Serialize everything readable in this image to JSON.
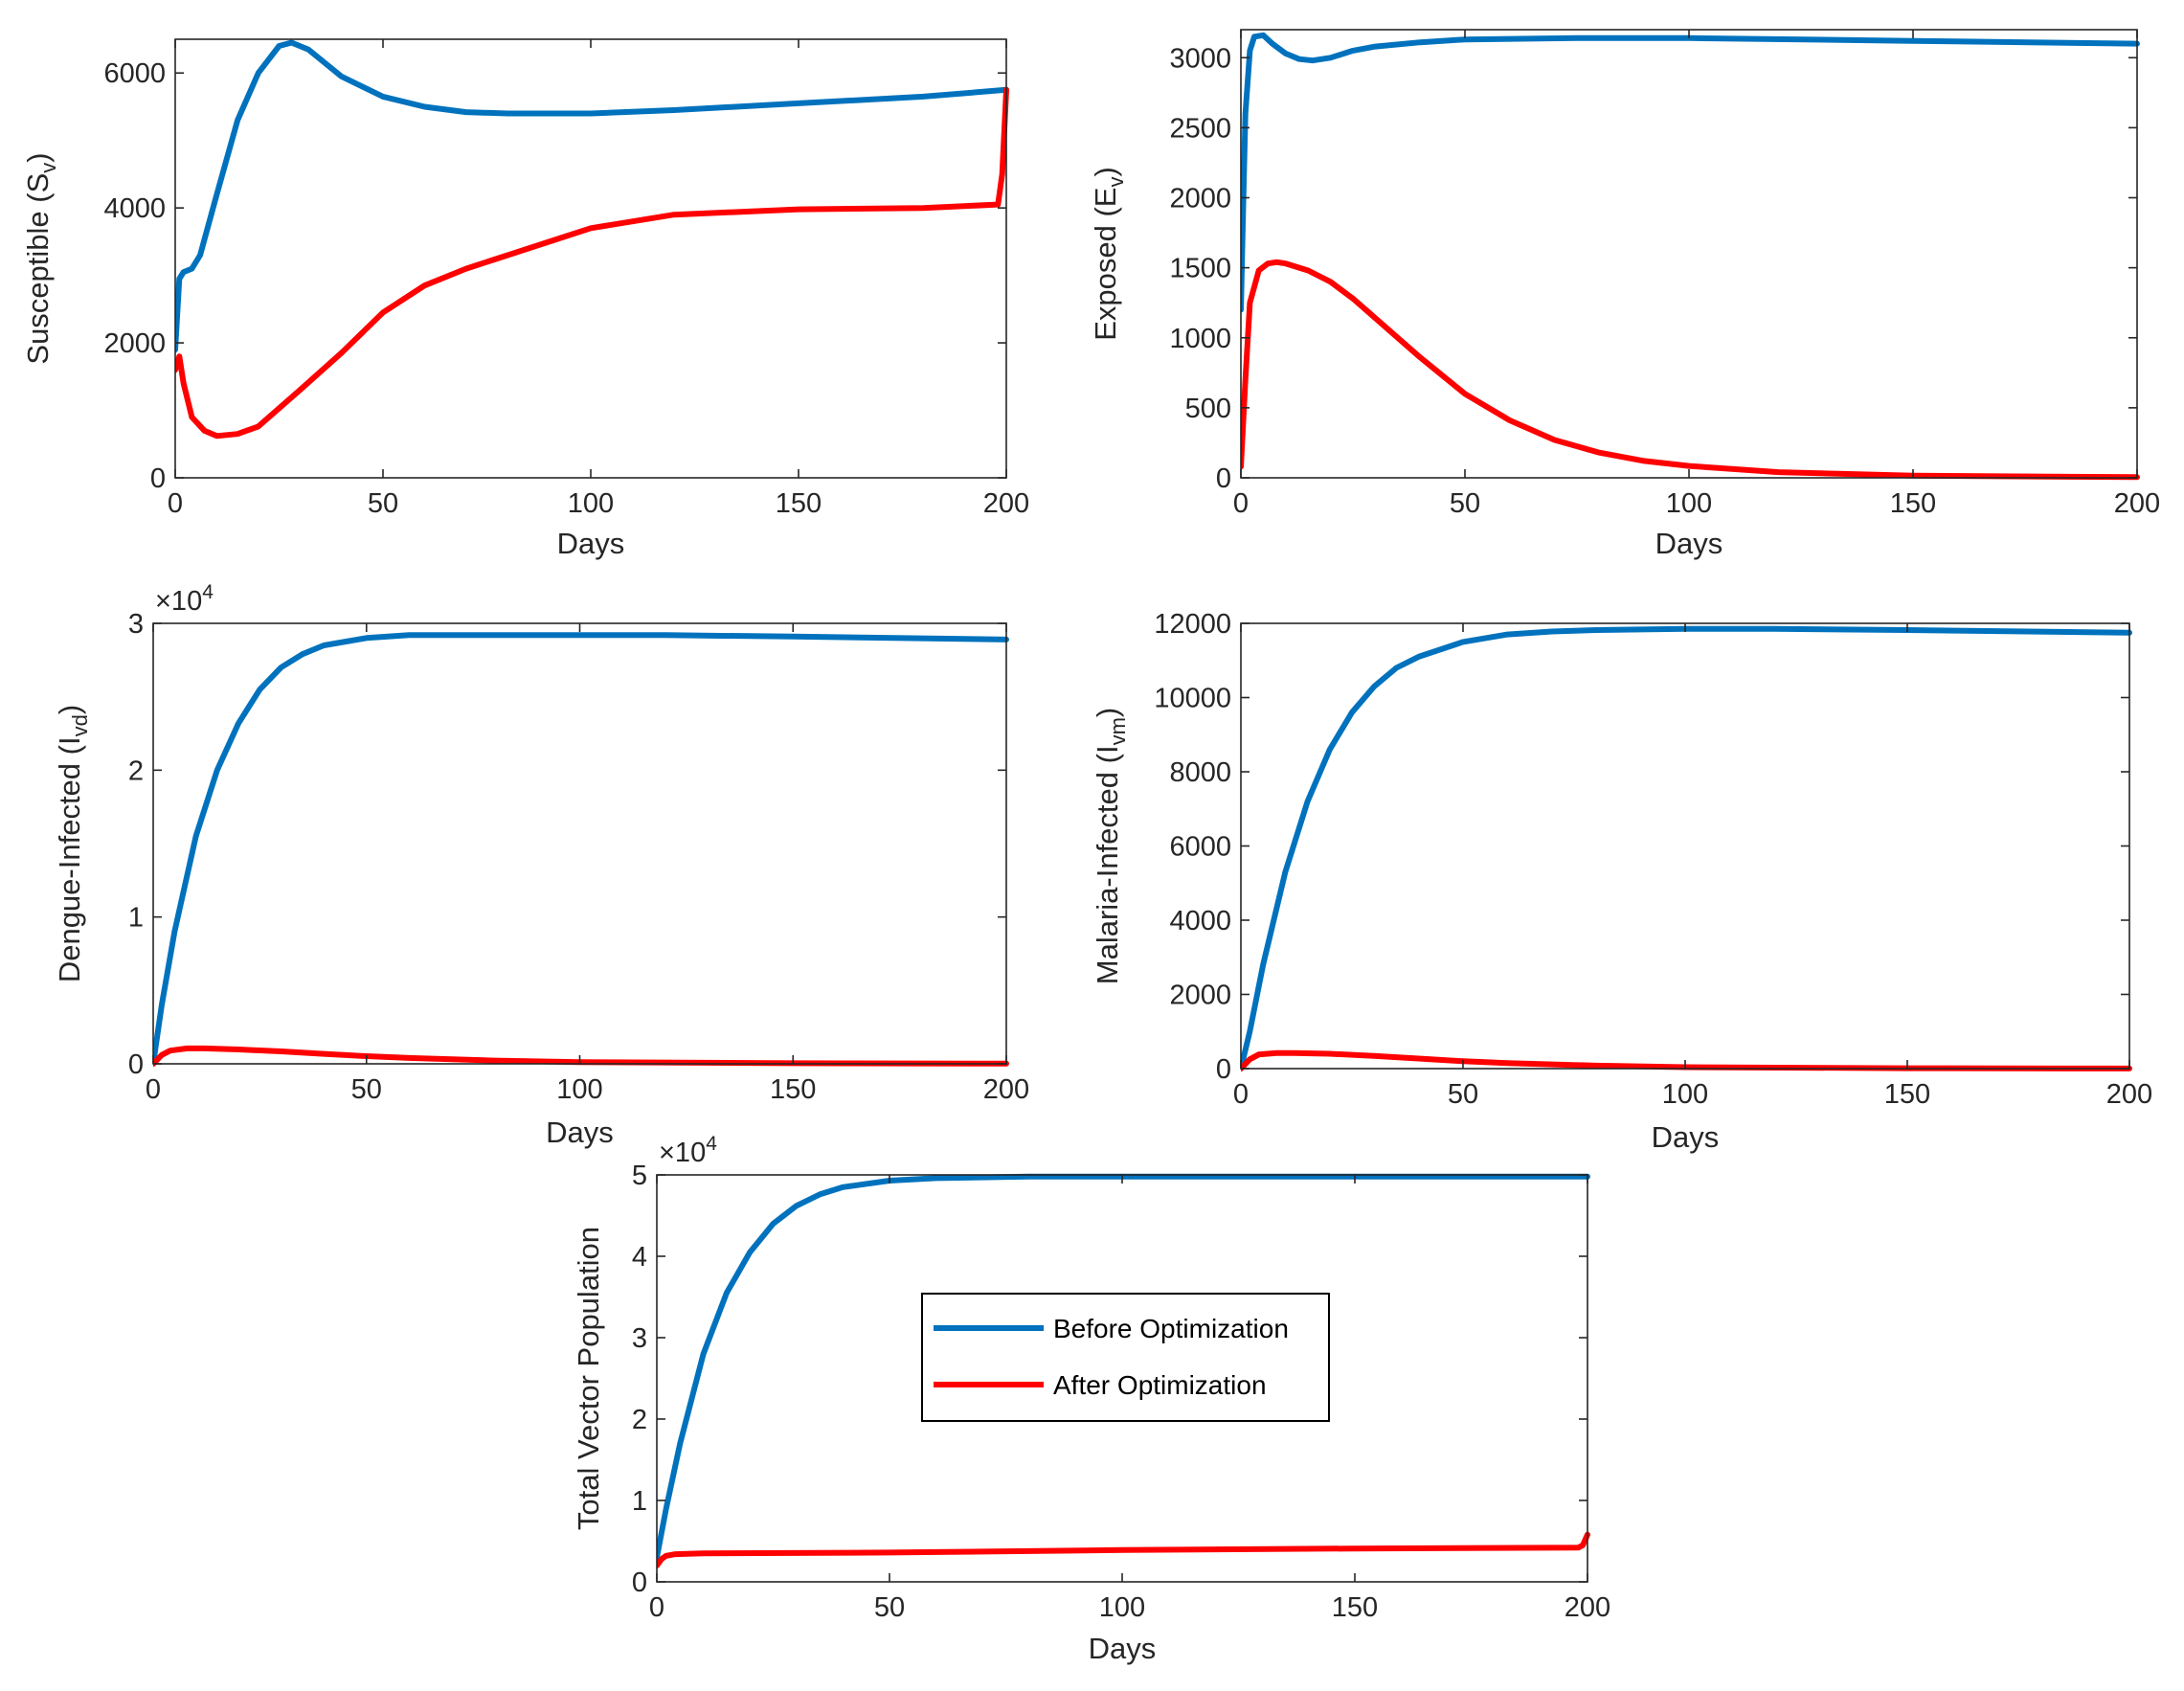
{
  "colors": {
    "before": "#0072BD",
    "after": "#FF0000",
    "axis": "#262626"
  },
  "legend": {
    "location": "center",
    "entries": [
      "Before Optimization",
      "After Optimization"
    ]
  },
  "chart_data": [
    {
      "type": "line",
      "title": "",
      "xlabel": "Days",
      "ylabel": "Susceptible (S",
      "ylabel_sub": "v",
      "ylabel_close": ")",
      "xlim": [
        0,
        200
      ],
      "ylim": [
        0,
        6500
      ],
      "xticks": [
        0,
        50,
        100,
        150,
        200
      ],
      "yticks": [
        0,
        2000,
        4000,
        6000
      ],
      "xtick_labels": [
        "0",
        "50",
        "100",
        "150",
        "200"
      ],
      "ytick_labels": [
        "0",
        "2000",
        "4000",
        "6000"
      ],
      "series": [
        {
          "name": "Before Optimization",
          "x": [
            0,
            1,
            2,
            4,
            6,
            10,
            15,
            20,
            25,
            28,
            32,
            40,
            50,
            60,
            70,
            80,
            90,
            100,
            120,
            150,
            180,
            200
          ],
          "y": [
            1900,
            2950,
            3050,
            3100,
            3300,
            4200,
            5300,
            6000,
            6400,
            6450,
            6350,
            5950,
            5650,
            5500,
            5420,
            5400,
            5400,
            5400,
            5450,
            5550,
            5650,
            5750
          ]
        },
        {
          "name": "After Optimization",
          "x": [
            0,
            1,
            2,
            4,
            7,
            10,
            15,
            20,
            30,
            40,
            50,
            60,
            70,
            80,
            90,
            100,
            120,
            150,
            180,
            198,
            199,
            200
          ],
          "y": [
            1600,
            1800,
            1400,
            900,
            700,
            620,
            650,
            760,
            1300,
            1850,
            2450,
            2850,
            3100,
            3300,
            3500,
            3700,
            3900,
            3980,
            4000,
            4050,
            4500,
            5750
          ]
        }
      ]
    },
    {
      "type": "line",
      "title": "",
      "xlabel": "Days",
      "ylabel": "Exposed (E",
      "ylabel_sub": "v",
      "ylabel_close": ")",
      "xlim": [
        0,
        200
      ],
      "ylim": [
        0,
        3200
      ],
      "xticks": [
        0,
        50,
        100,
        150,
        200
      ],
      "yticks": [
        0,
        500,
        1000,
        1500,
        2000,
        2500,
        3000
      ],
      "xtick_labels": [
        "0",
        "50",
        "100",
        "150",
        "200"
      ],
      "ytick_labels": [
        "0",
        "500",
        "1000",
        "1500",
        "2000",
        "2500",
        "3000"
      ],
      "series": [
        {
          "name": "Before Optimization",
          "x": [
            0,
            0.5,
            1,
            2,
            3,
            5,
            7,
            10,
            13,
            16,
            20,
            25,
            30,
            40,
            50,
            75,
            100,
            150,
            200
          ],
          "y": [
            1200,
            1900,
            2600,
            3050,
            3150,
            3160,
            3100,
            3030,
            2990,
            2980,
            3000,
            3050,
            3080,
            3110,
            3130,
            3140,
            3140,
            3120,
            3100
          ]
        },
        {
          "name": "After Optimization",
          "x": [
            0,
            1,
            2,
            4,
            6,
            8,
            10,
            15,
            20,
            25,
            30,
            40,
            50,
            60,
            70,
            80,
            90,
            100,
            120,
            150,
            200
          ],
          "y": [
            80,
            700,
            1250,
            1480,
            1530,
            1540,
            1530,
            1480,
            1400,
            1280,
            1140,
            860,
            600,
            410,
            270,
            180,
            120,
            85,
            40,
            15,
            5
          ]
        }
      ]
    },
    {
      "type": "line",
      "title": "",
      "xlabel": "Days",
      "ylabel": "Dengue-Infected (I",
      "ylabel_sub": "vd",
      "ylabel_close": ")",
      "exponent": "×10",
      "exponent_power": "4",
      "xlim": [
        0,
        200
      ],
      "ylim": [
        0,
        3
      ],
      "xticks": [
        0,
        50,
        100,
        150,
        200
      ],
      "yticks": [
        0,
        1,
        2,
        3
      ],
      "xtick_labels": [
        "0",
        "50",
        "100",
        "150",
        "200"
      ],
      "ytick_labels": [
        "0",
        "1",
        "2",
        "3"
      ],
      "series": [
        {
          "name": "Before Optimization",
          "x": [
            0,
            2,
            5,
            10,
            15,
            20,
            25,
            30,
            35,
            40,
            50,
            60,
            70,
            80,
            100,
            120,
            150,
            200
          ],
          "y": [
            0,
            0.4,
            0.9,
            1.55,
            2.0,
            2.32,
            2.55,
            2.7,
            2.79,
            2.85,
            2.9,
            2.92,
            2.92,
            2.92,
            2.92,
            2.92,
            2.91,
            2.89
          ]
        },
        {
          "name": "After Optimization",
          "x": [
            0,
            2,
            4,
            8,
            12,
            20,
            30,
            40,
            50,
            60,
            80,
            100,
            150,
            200
          ],
          "y": [
            0,
            0.06,
            0.09,
            0.105,
            0.105,
            0.098,
            0.085,
            0.068,
            0.052,
            0.04,
            0.022,
            0.012,
            0.004,
            0.001
          ]
        }
      ]
    },
    {
      "type": "line",
      "title": "",
      "xlabel": "Days",
      "ylabel": "Malaria-Infected (I",
      "ylabel_sub": "vm",
      "ylabel_close": ")",
      "xlim": [
        0,
        200
      ],
      "ylim": [
        0,
        12000
      ],
      "xticks": [
        0,
        50,
        100,
        150,
        200
      ],
      "yticks": [
        0,
        2000,
        4000,
        6000,
        8000,
        10000,
        12000
      ],
      "xtick_labels": [
        "0",
        "50",
        "100",
        "150",
        "200"
      ],
      "ytick_labels": [
        "0",
        "2000",
        "4000",
        "6000",
        "8000",
        "10000",
        "12000"
      ],
      "series": [
        {
          "name": "Before Optimization",
          "x": [
            0,
            2,
            5,
            10,
            15,
            20,
            25,
            30,
            35,
            40,
            50,
            60,
            70,
            80,
            100,
            120,
            150,
            200
          ],
          "y": [
            0,
            1000,
            2800,
            5300,
            7200,
            8600,
            9600,
            10300,
            10800,
            11100,
            11500,
            11700,
            11780,
            11820,
            11850,
            11850,
            11820,
            11750
          ]
        },
        {
          "name": "After Optimization",
          "x": [
            0,
            2,
            4,
            8,
            12,
            20,
            30,
            40,
            50,
            60,
            80,
            100,
            150,
            200
          ],
          "y": [
            0,
            250,
            380,
            420,
            420,
            400,
            340,
            270,
            200,
            150,
            80,
            40,
            10,
            2
          ]
        }
      ]
    },
    {
      "type": "line",
      "title": "",
      "xlabel": "Days",
      "ylabel": "Total Vector Population",
      "ylabel_sub": "",
      "ylabel_close": "",
      "exponent": "×10",
      "exponent_power": "4",
      "xlim": [
        0,
        200
      ],
      "ylim": [
        0,
        5
      ],
      "xticks": [
        0,
        50,
        100,
        150,
        200
      ],
      "yticks": [
        0,
        1,
        2,
        3,
        4,
        5
      ],
      "xtick_labels": [
        "0",
        "50",
        "100",
        "150",
        "200"
      ],
      "ytick_labels": [
        "0",
        "1",
        "2",
        "3",
        "4",
        "5"
      ],
      "series": [
        {
          "name": "Before Optimization",
          "x": [
            0,
            2,
            5,
            10,
            15,
            20,
            25,
            30,
            35,
            40,
            50,
            60,
            80,
            100,
            150,
            200
          ],
          "y": [
            0.3,
            0.9,
            1.7,
            2.8,
            3.55,
            4.05,
            4.4,
            4.62,
            4.76,
            4.85,
            4.93,
            4.96,
            4.98,
            4.98,
            4.98,
            4.98
          ]
        },
        {
          "name": "After Optimization",
          "x": [
            0,
            1,
            2,
            4,
            10,
            50,
            100,
            150,
            198,
            199,
            200
          ],
          "y": [
            0.2,
            0.28,
            0.32,
            0.34,
            0.35,
            0.36,
            0.39,
            0.41,
            0.42,
            0.45,
            0.58
          ]
        }
      ]
    }
  ]
}
